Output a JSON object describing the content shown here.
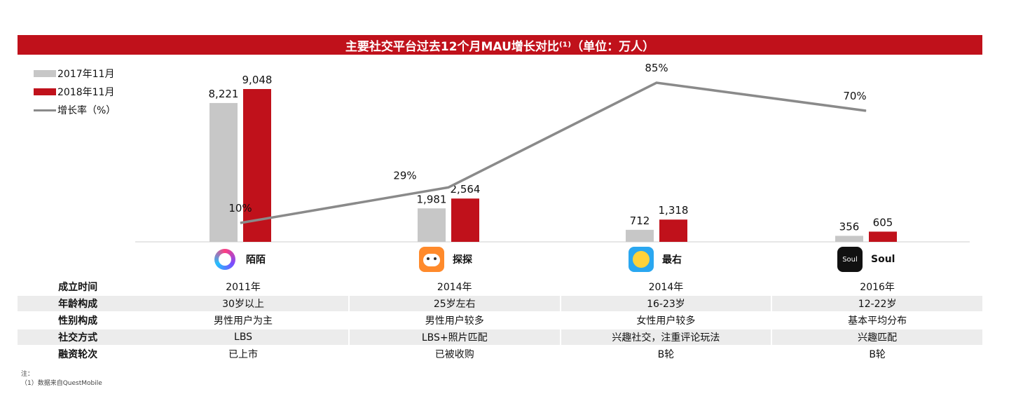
{
  "title": "主要社交平台过去12个月MAU增长对比⁽¹⁾（单位：万人）",
  "legend": {
    "s2017": "2017年11月",
    "s2018": "2018年11月",
    "growth": "增长率（%）"
  },
  "chart_data": {
    "type": "bar",
    "categories": [
      "陌陌",
      "探探",
      "最右",
      "Soul"
    ],
    "series": [
      {
        "name": "2017年11月",
        "values": [
          8221,
          1981,
          712,
          356
        ],
        "labels": [
          "8,221",
          "1,981",
          "712",
          "356"
        ],
        "color": "#c7c7c7"
      },
      {
        "name": "2018年11月",
        "values": [
          9048,
          2564,
          1318,
          605
        ],
        "labels": [
          "9,048",
          "2,564",
          "1,318",
          "605"
        ],
        "color": "#c0111b"
      }
    ],
    "line_series": {
      "name": "增长率（%）",
      "values": [
        10,
        29,
        85,
        70
      ],
      "labels": [
        "10%",
        "29%",
        "85%",
        "70%"
      ],
      "color": "#8a8a8a"
    }
  },
  "apps": [
    {
      "name": "陌陌",
      "icon": "momo-icon"
    },
    {
      "name": "探探",
      "icon": "tantan-icon"
    },
    {
      "name": "最右",
      "icon": "zuiyou-icon"
    },
    {
      "name": "Soul",
      "icon": "soul-icon",
      "icon_text": "Soul"
    }
  ],
  "table": {
    "rows": [
      {
        "label": "成立时间",
        "cells": [
          "2011年",
          "2014年",
          "2014年",
          "2016年"
        ]
      },
      {
        "label": "年龄构成",
        "cells": [
          "30岁以上",
          "25岁左右",
          "16-23岁",
          "12-22岁"
        ]
      },
      {
        "label": "性别构成",
        "cells": [
          "男性用户为主",
          "男性用户较多",
          "女性用户较多",
          "基本平均分布"
        ]
      },
      {
        "label": "社交方式",
        "cells": [
          "LBS",
          "LBS+照片匹配",
          "兴趣社交，注重评论玩法",
          "兴趣匹配"
        ]
      },
      {
        "label": "融资轮次",
        "cells": [
          "已上市",
          "已被收购",
          "B轮",
          "B轮"
        ]
      }
    ]
  },
  "note": {
    "line1": "注：",
    "line2": "（1）数据来自QuestMobile"
  }
}
